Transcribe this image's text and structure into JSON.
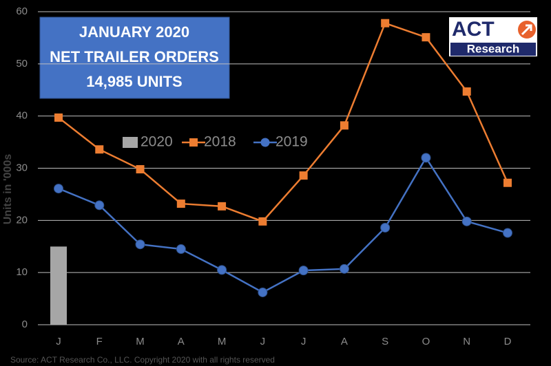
{
  "chart_data": {
    "type": "bar_line",
    "title": [
      "JANUARY 2020",
      "NET TRAILER ORDERS",
      "14,985 UNITS"
    ],
    "logo": {
      "text": "ACT",
      "subtext": "Research"
    },
    "y_label": "Units in '000s",
    "source": "Source: ACT Research Co., LLC. Copyright 2020 with all rights reserved",
    "categories": [
      "J",
      "F",
      "M",
      "A",
      "M",
      "J",
      "J",
      "A",
      "S",
      "O",
      "N",
      "D"
    ],
    "series": [
      {
        "name": "2020",
        "type": "bar",
        "color": "#a6a6a6",
        "values": [
          14.985,
          null,
          null,
          null,
          null,
          null,
          null,
          null,
          null,
          null,
          null,
          null
        ]
      },
      {
        "name": "2018",
        "type": "line",
        "marker": "square",
        "color": "#ed7d31",
        "values": [
          39.7,
          33.6,
          29.8,
          23.2,
          22.7,
          19.8,
          28.6,
          38.2,
          57.8,
          55.1,
          44.7,
          27.2
        ]
      },
      {
        "name": "2019",
        "type": "line",
        "marker": "circle",
        "color": "#4472c4",
        "values": [
          26.1,
          22.9,
          15.4,
          14.5,
          10.5,
          6.2,
          10.4,
          10.7,
          18.6,
          32.0,
          19.8,
          17.6
        ]
      }
    ],
    "ylim": [
      0,
      60
    ],
    "yticks": [
      0,
      10,
      20,
      30,
      40,
      50,
      60
    ],
    "grid": true
  }
}
